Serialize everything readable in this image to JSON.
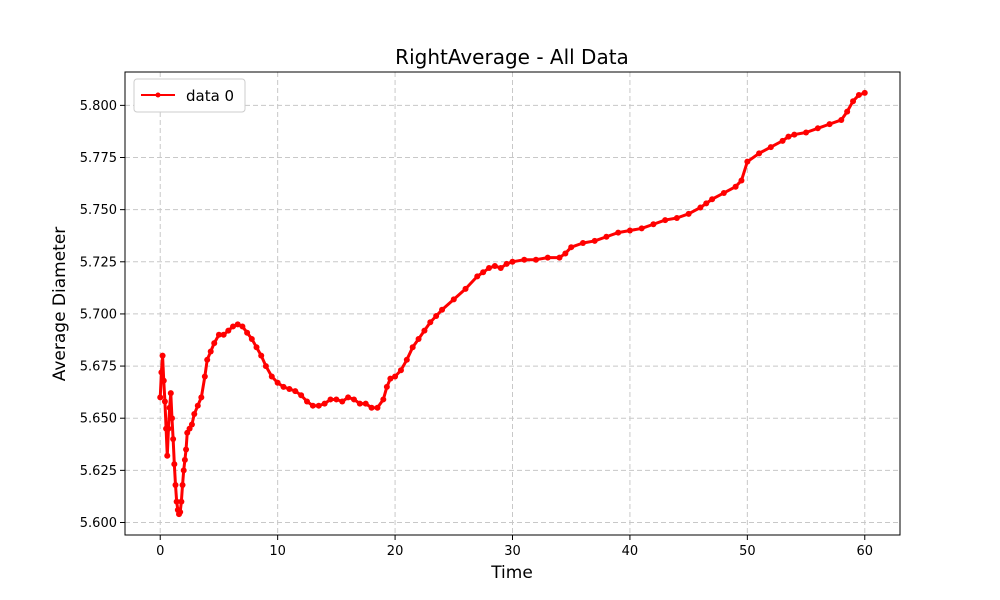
{
  "chart_data": {
    "type": "line",
    "title": "RightAverage - All Data",
    "xlabel": "Time",
    "ylabel": "Average Diameter",
    "xlim": [
      -3,
      63
    ],
    "ylim": [
      5.594,
      5.816
    ],
    "xticks": [
      0,
      10,
      20,
      30,
      40,
      50,
      60
    ],
    "yticks": [
      5.6,
      5.625,
      5.65,
      5.675,
      5.7,
      5.725,
      5.75,
      5.775,
      5.8
    ],
    "xtick_labels": [
      "0",
      "10",
      "20",
      "30",
      "40",
      "50",
      "60"
    ],
    "ytick_labels": [
      "5.600",
      "5.625",
      "5.650",
      "5.675",
      "5.700",
      "5.725",
      "5.750",
      "5.775",
      "5.800"
    ],
    "grid": true,
    "legend_position": "top-left",
    "series": [
      {
        "name": "data 0",
        "color": "#ff0000",
        "marker": "circle",
        "x": [
          0,
          0.1,
          0.2,
          0.3,
          0.4,
          0.5,
          0.6,
          0.7,
          0.8,
          0.9,
          1.0,
          1.1,
          1.2,
          1.3,
          1.4,
          1.5,
          1.6,
          1.7,
          1.8,
          1.9,
          2.0,
          2.1,
          2.2,
          2.3,
          2.5,
          2.7,
          2.9,
          3.2,
          3.5,
          3.8,
          4.0,
          4.3,
          4.6,
          5.0,
          5.4,
          5.8,
          6.2,
          6.6,
          7.0,
          7.4,
          7.8,
          8.2,
          8.6,
          9.0,
          9.5,
          10.0,
          10.5,
          11.0,
          11.5,
          12.0,
          12.5,
          13.0,
          13.5,
          14.0,
          14.5,
          15.0,
          15.5,
          16.0,
          16.5,
          17.0,
          17.5,
          18.0,
          18.5,
          19.0,
          19.3,
          19.6,
          20.0,
          20.5,
          21.0,
          21.5,
          22.0,
          22.5,
          23.0,
          23.5,
          24.0,
          25.0,
          26.0,
          27.0,
          27.5,
          28.0,
          28.5,
          29.0,
          29.5,
          30.0,
          31.0,
          32.0,
          33.0,
          34.0,
          34.5,
          35.0,
          36.0,
          37.0,
          38.0,
          39.0,
          40.0,
          41.0,
          42.0,
          43.0,
          44.0,
          45.0,
          46.0,
          46.5,
          47.0,
          48.0,
          49.0,
          49.5,
          50.0,
          51.0,
          52.0,
          53.0,
          53.5,
          54.0,
          55.0,
          56.0,
          57.0,
          58.0,
          58.5,
          59.0,
          59.5,
          60.0
        ],
        "y": [
          5.66,
          5.672,
          5.68,
          5.668,
          5.658,
          5.645,
          5.632,
          5.645,
          5.655,
          5.662,
          5.65,
          5.64,
          5.628,
          5.618,
          5.61,
          5.606,
          5.604,
          5.605,
          5.61,
          5.618,
          5.625,
          5.63,
          5.635,
          5.643,
          5.645,
          5.647,
          5.652,
          5.656,
          5.66,
          5.67,
          5.678,
          5.682,
          5.686,
          5.69,
          5.69,
          5.692,
          5.694,
          5.695,
          5.694,
          5.691,
          5.688,
          5.684,
          5.68,
          5.675,
          5.67,
          5.667,
          5.665,
          5.664,
          5.663,
          5.661,
          5.658,
          5.656,
          5.656,
          5.657,
          5.659,
          5.659,
          5.658,
          5.66,
          5.659,
          5.657,
          5.657,
          5.655,
          5.655,
          5.659,
          5.665,
          5.669,
          5.67,
          5.673,
          5.678,
          5.684,
          5.688,
          5.692,
          5.696,
          5.699,
          5.702,
          5.707,
          5.712,
          5.718,
          5.72,
          5.722,
          5.723,
          5.722,
          5.724,
          5.725,
          5.726,
          5.726,
          5.727,
          5.727,
          5.729,
          5.732,
          5.734,
          5.735,
          5.737,
          5.739,
          5.74,
          5.741,
          5.743,
          5.745,
          5.746,
          5.748,
          5.751,
          5.753,
          5.755,
          5.758,
          5.761,
          5.764,
          5.773,
          5.777,
          5.78,
          5.783,
          5.785,
          5.786,
          5.787,
          5.789,
          5.791,
          5.793,
          5.797,
          5.802,
          5.805,
          5.806
        ]
      }
    ]
  }
}
